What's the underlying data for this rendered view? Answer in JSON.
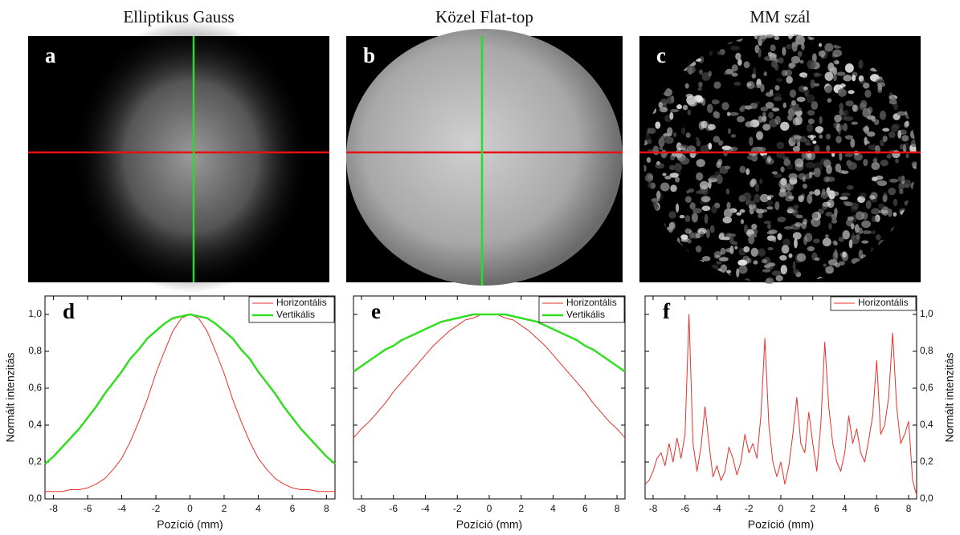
{
  "images": [
    {
      "title": "Elliptikus Gauss",
      "label": "a"
    },
    {
      "title": "Közel Flat-top",
      "label": "b"
    },
    {
      "title": "MM szál",
      "label": "c"
    }
  ],
  "chart_data": [
    {
      "type": "line",
      "label": "d",
      "xlabel": "Pozíció (mm)",
      "ylabel": "Normált intenzitás",
      "yaxis": "left",
      "legend": "upper right",
      "xlim": [
        -8.5,
        8.5
      ],
      "ylim": [
        0,
        1.1
      ],
      "xticks": [
        -8,
        -6,
        -4,
        -2,
        0,
        2,
        4,
        6,
        8
      ],
      "yticks": [
        {
          "value": 0,
          "label": "0,0"
        },
        {
          "value": 0.2,
          "label": "0,2"
        },
        {
          "value": 0.4,
          "label": "0,4"
        },
        {
          "value": 0.6,
          "label": "0,6"
        },
        {
          "value": 0.8,
          "label": "0,8"
        },
        {
          "value": 1,
          "label": "1,0"
        }
      ],
      "x": [
        -8.5,
        -8,
        -7.5,
        -7,
        -6.5,
        -6,
        -5.5,
        -5,
        -4.5,
        -4,
        -3.5,
        -3,
        -2.5,
        -2,
        -1.5,
        -1,
        -0.5,
        0,
        0.5,
        1,
        1.5,
        2,
        2.5,
        3,
        3.5,
        4,
        4.5,
        5,
        5.5,
        6,
        6.5,
        7,
        7.5,
        8,
        8.5
      ],
      "series": [
        {
          "name": "Horizontális",
          "color": "#e8302a",
          "width": 1,
          "values": [
            0.04,
            0.04,
            0.04,
            0.05,
            0.05,
            0.06,
            0.08,
            0.11,
            0.16,
            0.22,
            0.31,
            0.42,
            0.54,
            0.68,
            0.8,
            0.91,
            0.98,
            1.0,
            0.98,
            0.91,
            0.8,
            0.68,
            0.54,
            0.42,
            0.31,
            0.22,
            0.16,
            0.11,
            0.08,
            0.06,
            0.05,
            0.05,
            0.04,
            0.04,
            0.04
          ]
        },
        {
          "name": "Vertikális",
          "color": "#33dd22",
          "width": 2.5,
          "values": [
            0.19,
            0.23,
            0.28,
            0.33,
            0.38,
            0.44,
            0.5,
            0.57,
            0.63,
            0.69,
            0.76,
            0.81,
            0.87,
            0.91,
            0.95,
            0.98,
            0.99,
            1.0,
            0.99,
            0.98,
            0.95,
            0.91,
            0.87,
            0.81,
            0.76,
            0.69,
            0.63,
            0.57,
            0.5,
            0.44,
            0.38,
            0.33,
            0.28,
            0.23,
            0.19
          ]
        }
      ]
    },
    {
      "type": "line",
      "label": "e",
      "xlabel": "Pozíció (mm)",
      "legend": "upper right",
      "xlim": [
        -8.5,
        8.5
      ],
      "ylim": [
        0,
        1.1
      ],
      "xticks": [
        -8,
        -6,
        -4,
        -2,
        0,
        2,
        4,
        6,
        8
      ],
      "yticks": [
        0,
        0.2,
        0.4,
        0.6,
        0.8,
        1
      ],
      "x": [
        -8.5,
        -8,
        -7.5,
        -7,
        -6.5,
        -6,
        -5.5,
        -5,
        -4.5,
        -4,
        -3.5,
        -3,
        -2.5,
        -2,
        -1.5,
        -1,
        -0.5,
        0,
        0.5,
        1,
        1.5,
        2,
        2.5,
        3,
        3.5,
        4,
        4.5,
        5,
        5.5,
        6,
        6.5,
        7,
        7.5,
        8,
        8.5
      ],
      "series": [
        {
          "name": "Horizontális",
          "color": "#e8302a",
          "width": 1,
          "values": [
            0.33,
            0.38,
            0.42,
            0.47,
            0.52,
            0.58,
            0.63,
            0.68,
            0.73,
            0.78,
            0.83,
            0.87,
            0.91,
            0.94,
            0.97,
            0.98,
            1.0,
            1.0,
            1.0,
            0.98,
            0.97,
            0.94,
            0.91,
            0.87,
            0.83,
            0.78,
            0.73,
            0.68,
            0.63,
            0.58,
            0.52,
            0.47,
            0.42,
            0.38,
            0.33
          ]
        },
        {
          "name": "Vertikális",
          "color": "#33dd22",
          "width": 2.5,
          "values": [
            0.69,
            0.72,
            0.75,
            0.78,
            0.81,
            0.83,
            0.86,
            0.88,
            0.9,
            0.92,
            0.94,
            0.96,
            0.97,
            0.98,
            0.99,
            1.0,
            1.0,
            1.0,
            1.0,
            1.0,
            0.99,
            0.98,
            0.97,
            0.96,
            0.94,
            0.92,
            0.9,
            0.88,
            0.86,
            0.83,
            0.81,
            0.78,
            0.75,
            0.72,
            0.69
          ]
        }
      ]
    },
    {
      "type": "line",
      "label": "f",
      "xlabel": "Pozíció (mm)",
      "ylabel": "Normált intenzitás",
      "yaxis": "right",
      "legend": "upper right",
      "xlim": [
        -8.5,
        8.5
      ],
      "ylim": [
        0,
        1.1
      ],
      "xticks": [
        -8,
        -6,
        -4,
        -2,
        0,
        2,
        4,
        6,
        8
      ],
      "yticks": [
        {
          "value": 0,
          "label": "0,0"
        },
        {
          "value": 0.2,
          "label": "0,2"
        },
        {
          "value": 0.4,
          "label": "0,4"
        },
        {
          "value": 0.6,
          "label": "0,6"
        },
        {
          "value": 0.8,
          "label": "0,8"
        },
        {
          "value": 1,
          "label": "1,0"
        }
      ],
      "x": [
        -8.5,
        -8.25,
        -8,
        -7.75,
        -7.5,
        -7.25,
        -7,
        -6.75,
        -6.5,
        -6.25,
        -6,
        -5.75,
        -5.5,
        -5.25,
        -5,
        -4.75,
        -4.5,
        -4.25,
        -4,
        -3.75,
        -3.5,
        -3.25,
        -3,
        -2.75,
        -2.5,
        -2.25,
        -2,
        -1.75,
        -1.5,
        -1.25,
        -1,
        -0.75,
        -0.5,
        -0.25,
        0,
        0.25,
        0.5,
        0.75,
        1,
        1.25,
        1.5,
        1.75,
        2,
        2.25,
        2.5,
        2.75,
        3,
        3.25,
        3.5,
        3.75,
        4,
        4.25,
        4.5,
        4.75,
        5,
        5.25,
        5.5,
        5.75,
        6,
        6.25,
        6.5,
        6.75,
        7,
        7.25,
        7.5,
        7.75,
        8,
        8.25,
        8.5
      ],
      "series": [
        {
          "name": "Horizontális",
          "color": "#e8302a",
          "width": 1,
          "values": [
            0.08,
            0.1,
            0.15,
            0.22,
            0.25,
            0.18,
            0.3,
            0.2,
            0.33,
            0.22,
            0.35,
            1.0,
            0.3,
            0.15,
            0.28,
            0.5,
            0.3,
            0.12,
            0.18,
            0.1,
            0.15,
            0.28,
            0.22,
            0.13,
            0.2,
            0.35,
            0.25,
            0.3,
            0.22,
            0.45,
            0.87,
            0.4,
            0.2,
            0.12,
            0.2,
            0.08,
            0.18,
            0.35,
            0.55,
            0.3,
            0.25,
            0.47,
            0.3,
            0.15,
            0.4,
            0.85,
            0.5,
            0.3,
            0.2,
            0.15,
            0.25,
            0.45,
            0.3,
            0.38,
            0.25,
            0.2,
            0.32,
            0.45,
            0.75,
            0.35,
            0.4,
            0.55,
            0.9,
            0.5,
            0.3,
            0.35,
            0.42,
            0.1,
            0.02
          ]
        }
      ]
    }
  ]
}
